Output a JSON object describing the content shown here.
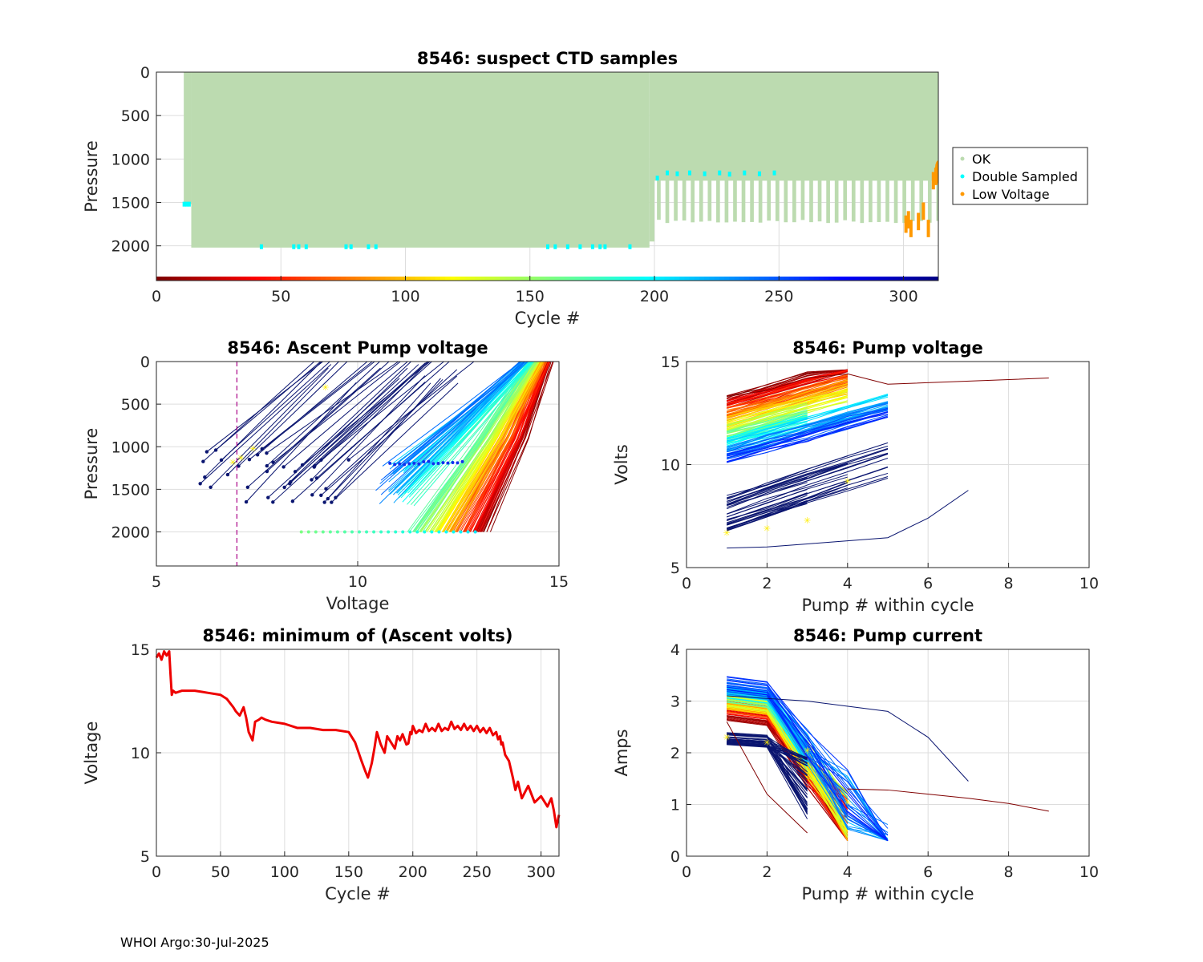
{
  "footer": "WHOI Argo:30-Jul-2025",
  "colors": {
    "ok": "#bcdbb0",
    "double": "#00ffff",
    "low": "#ff9900",
    "min_line": "#ee0000",
    "grid": "#dddddd",
    "vline": "#aa0088",
    "marker": "#ffee00"
  },
  "chart_data": [
    {
      "id": "ctd",
      "type": "scatter",
      "title": "8546: suspect CTD samples",
      "xlabel": "Cycle #",
      "ylabel": "Pressure",
      "xlim": [
        0,
        314
      ],
      "ylim": [
        0,
        2400
      ],
      "y_reversed": true,
      "xticks": [
        0,
        50,
        100,
        150,
        200,
        250,
        300
      ],
      "yticks": [
        0,
        500,
        1000,
        1500,
        2000
      ],
      "legend": {
        "position": "outside-right",
        "entries": [
          "OK",
          "Double Sampled",
          "Low Voltage"
        ]
      },
      "ok_segments": [
        {
          "x0": 11,
          "x1": 14,
          "depth": 1520
        },
        {
          "x0": 14,
          "x1": 198,
          "depth": 2020
        },
        {
          "x0": 198,
          "x1": 200,
          "depth": 1950
        },
        {
          "x0": 200,
          "x1": 314,
          "depth": 1720
        }
      ],
      "double_sampled": [
        [
          11,
          1520
        ],
        [
          12,
          1520
        ],
        [
          13,
          1520
        ],
        [
          42,
          2010
        ],
        [
          55,
          2010
        ],
        [
          57,
          2010
        ],
        [
          60,
          2010
        ],
        [
          76,
          2010
        ],
        [
          78,
          2010
        ],
        [
          85,
          2010
        ],
        [
          88,
          2010
        ],
        [
          157,
          2010
        ],
        [
          160,
          2010
        ],
        [
          165,
          2010
        ],
        [
          170,
          2010
        ],
        [
          175,
          2010
        ],
        [
          178,
          2010
        ],
        [
          180,
          2010
        ],
        [
          190,
          2010
        ],
        [
          201,
          1220
        ],
        [
          205,
          1160
        ],
        [
          209,
          1170
        ],
        [
          214,
          1160
        ],
        [
          220,
          1170
        ],
        [
          226,
          1160
        ],
        [
          230,
          1175
        ],
        [
          236,
          1160
        ],
        [
          242,
          1170
        ],
        [
          248,
          1160
        ]
      ],
      "low_voltage": [
        [
          301,
          1650
        ],
        [
          302,
          1600
        ],
        [
          303,
          1700
        ],
        [
          306,
          1620
        ],
        [
          308,
          1500
        ],
        [
          310,
          1700
        ],
        [
          312,
          1150
        ],
        [
          313,
          1100
        ],
        [
          314,
          1080
        ]
      ],
      "cycle_colorbar_range": [
        0,
        314
      ]
    },
    {
      "id": "ascent",
      "type": "line",
      "title": "8546: Ascent Pump voltage",
      "xlabel": "Voltage",
      "ylabel": "Pressure",
      "xlim": [
        5,
        15
      ],
      "ylim": [
        0,
        2400
      ],
      "y_reversed": true,
      "xticks": [
        5,
        10,
        15
      ],
      "yticks": [
        0,
        500,
        1000,
        1500,
        2000
      ],
      "threshold_voltage": 7
    },
    {
      "id": "pumpv",
      "type": "line",
      "title": "8546: Pump voltage",
      "xlabel": "Pump # within cycle",
      "ylabel": "Volts",
      "xlim": [
        0,
        10
      ],
      "ylim": [
        5,
        15
      ],
      "xticks": [
        0,
        2,
        4,
        6,
        8,
        10
      ],
      "yticks": [
        5,
        10,
        15
      ]
    },
    {
      "id": "minv",
      "type": "line",
      "title": "8546: minimum of (Ascent volts)",
      "xlabel": "Cycle #",
      "ylabel": "Voltage",
      "xlim": [
        0,
        314
      ],
      "ylim": [
        5,
        15
      ],
      "xticks": [
        0,
        50,
        100,
        150,
        200,
        250,
        300
      ],
      "yticks": [
        5,
        10,
        15
      ],
      "series": [
        {
          "name": "min ascent volts",
          "x": [
            0,
            2,
            4,
            6,
            8,
            10,
            11,
            12,
            13,
            15,
            20,
            30,
            40,
            50,
            55,
            60,
            62,
            65,
            68,
            70,
            72,
            75,
            77,
            80,
            82,
            85,
            90,
            100,
            110,
            120,
            130,
            140,
            150,
            155,
            160,
            163,
            165,
            168,
            170,
            172,
            175,
            178,
            180,
            183,
            186,
            188,
            190,
            192,
            195,
            198,
            200,
            205,
            210,
            215,
            220,
            225,
            230,
            235,
            240,
            245,
            250,
            255,
            260,
            265,
            268,
            270,
            272,
            275,
            278,
            280,
            282,
            285,
            290,
            295,
            300,
            305,
            308,
            310,
            312,
            314
          ],
          "y": [
            14.6,
            14.8,
            14.5,
            14.9,
            14.7,
            14.9,
            13.8,
            12.8,
            13.0,
            12.9,
            13.0,
            13.0,
            12.9,
            12.8,
            12.6,
            12.2,
            12.0,
            11.8,
            12.2,
            11.7,
            11.0,
            10.6,
            11.5,
            11.6,
            11.7,
            11.6,
            11.5,
            11.4,
            11.2,
            11.2,
            11.1,
            11.1,
            11.0,
            10.5,
            9.6,
            9.1,
            8.8,
            9.5,
            10.2,
            11.0,
            10.4,
            10.0,
            10.8,
            10.5,
            10.2,
            10.8,
            10.6,
            10.9,
            10.4,
            11.0,
            11.3,
            11.1,
            11.4,
            11.2,
            11.4,
            11.2,
            11.5,
            11.3,
            11.4,
            11.3,
            11.3,
            11.2,
            11.2,
            11.0,
            10.8,
            10.5,
            9.9,
            9.6,
            8.8,
            8.2,
            8.6,
            7.8,
            8.4,
            7.6,
            7.9,
            7.4,
            7.8,
            7.2,
            6.4,
            7.0
          ]
        }
      ]
    },
    {
      "id": "pumpi",
      "type": "line",
      "title": "8546: Pump current",
      "xlabel": "Pump # within cycle",
      "ylabel": "Amps",
      "xlim": [
        0,
        10
      ],
      "ylim": [
        0,
        4
      ],
      "xticks": [
        0,
        2,
        4,
        6,
        8,
        10
      ],
      "yticks": [
        0,
        1,
        2,
        3,
        4
      ]
    }
  ]
}
